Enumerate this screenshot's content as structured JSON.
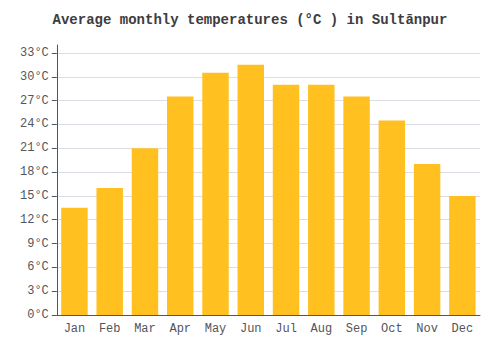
{
  "chart_data": {
    "type": "bar",
    "title": "Average monthly temperatures (°C ) in Sultānpur",
    "categories": [
      "Jan",
      "Feb",
      "Mar",
      "Apr",
      "May",
      "Jun",
      "Jul",
      "Aug",
      "Sep",
      "Oct",
      "Nov",
      "Dec"
    ],
    "values": [
      13.5,
      16.0,
      21.0,
      27.5,
      30.5,
      31.5,
      29.0,
      29.0,
      27.5,
      24.5,
      19.0,
      15.0
    ],
    "color": "#FFC020",
    "ylim": [
      0,
      34
    ],
    "yticks": [
      {
        "value": 0,
        "label": "0°C"
      },
      {
        "value": 3,
        "label": "3°C"
      },
      {
        "value": 6,
        "label": "6°C"
      },
      {
        "value": 9,
        "label": "9°C"
      },
      {
        "value": 12,
        "label": "12°C"
      },
      {
        "value": 15,
        "label": "15°C"
      },
      {
        "value": 18,
        "label": "18°C"
      },
      {
        "value": 21,
        "label": "21°C"
      },
      {
        "value": 24,
        "label": "24°C"
      },
      {
        "value": 27,
        "label": "27°C"
      },
      {
        "value": 30,
        "label": "30°C"
      },
      {
        "value": 33,
        "label": "33°C"
      }
    ],
    "grid": true
  }
}
